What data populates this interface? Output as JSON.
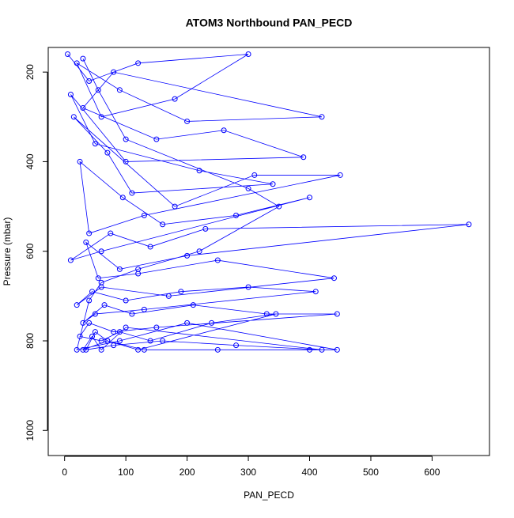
{
  "chart_data": {
    "type": "line",
    "title": "ATOM3 Northbound PAN_PECD",
    "x_label": "PAN_PECD",
    "y_label": "Pressure (mbar)",
    "series": [
      {
        "color": "#0000ff",
        "x": [
          5,
          40,
          120,
          300,
          180,
          60,
          20,
          90,
          200,
          420,
          80,
          30,
          150,
          260,
          390,
          100,
          10,
          50,
          220,
          340,
          110,
          70,
          15,
          180,
          310,
          450,
          130,
          40,
          25,
          95,
          160,
          280,
          400,
          60,
          10,
          75,
          140,
          230,
          660,
          200,
          90,
          35,
          55,
          120,
          250,
          440,
          170,
          60,
          20,
          45,
          100,
          190,
          300,
          410,
          130,
          50,
          30,
          65,
          110,
          210,
          330,
          445,
          150,
          80,
          40,
          25,
          60,
          90,
          140,
          240,
          345,
          120,
          70,
          50,
          35,
          80,
          160,
          280,
          420,
          100,
          60,
          45,
          30,
          70,
          130,
          250,
          400,
          445,
          200,
          90,
          20,
          40,
          60,
          120,
          220,
          350,
          300,
          100,
          55,
          30
        ],
        "values": [
          160,
          220,
          180,
          160,
          260,
          300,
          180,
          240,
          310,
          300,
          200,
          280,
          350,
          330,
          390,
          400,
          250,
          360,
          420,
          450,
          470,
          380,
          300,
          500,
          430,
          430,
          520,
          560,
          400,
          480,
          540,
          520,
          480,
          600,
          620,
          560,
          590,
          550,
          540,
          610,
          640,
          580,
          660,
          650,
          620,
          660,
          700,
          680,
          720,
          690,
          710,
          690,
          680,
          690,
          730,
          740,
          760,
          720,
          740,
          720,
          740,
          740,
          770,
          780,
          760,
          790,
          800,
          780,
          800,
          760,
          740,
          820,
          800,
          780,
          820,
          810,
          800,
          810,
          820,
          770,
          820,
          790,
          820,
          800,
          820,
          820,
          820,
          820,
          760,
          800,
          820,
          710,
          670,
          640,
          600,
          500,
          460,
          350,
          240,
          170
        ]
      }
    ],
    "xlim": [
      -26.7,
      693.7
    ],
    "xticks": [
      0,
      100,
      200,
      300,
      400,
      500,
      600
    ],
    "ylim": [
      1056,
      145
    ],
    "yticks": [
      200,
      400,
      600,
      800,
      1000
    ],
    "markers": "open-circle"
  }
}
